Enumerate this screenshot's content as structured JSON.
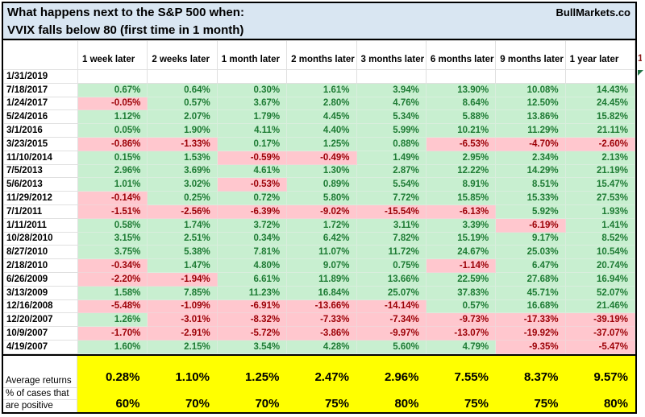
{
  "title": {
    "line1": "What happens next to the S&P 500 when:",
    "line2": "VVIX falls below 80 (first time in 1 month)",
    "brand": "BullMarkets.co"
  },
  "table": {
    "columns": [
      "1 week later",
      "2 weeks later",
      "1 month later",
      "2 months later",
      "3 months later",
      "6 months later",
      "9 months later",
      "1 year later"
    ],
    "rows": [
      {
        "date": "1/31/2019",
        "values": [
          "",
          "",
          "",
          "",
          "",
          "",
          "",
          ""
        ]
      },
      {
        "date": "7/18/2017",
        "values": [
          "0.67%",
          "0.64%",
          "0.30%",
          "1.61%",
          "3.94%",
          "13.90%",
          "10.08%",
          "14.43%"
        ]
      },
      {
        "date": "1/24/2017",
        "values": [
          "-0.05%",
          "0.57%",
          "3.67%",
          "2.80%",
          "4.76%",
          "8.64%",
          "12.50%",
          "24.45%"
        ]
      },
      {
        "date": "5/24/2016",
        "values": [
          "1.12%",
          "2.07%",
          "1.79%",
          "4.45%",
          "5.34%",
          "5.88%",
          "13.86%",
          "15.82%"
        ]
      },
      {
        "date": "3/1/2016",
        "values": [
          "0.05%",
          "1.90%",
          "4.11%",
          "4.40%",
          "5.99%",
          "10.21%",
          "11.29%",
          "21.11%"
        ]
      },
      {
        "date": "3/23/2015",
        "values": [
          "-0.86%",
          "-1.33%",
          "0.17%",
          "1.25%",
          "0.88%",
          "-6.53%",
          "-4.70%",
          "-2.60%"
        ]
      },
      {
        "date": "11/10/2014",
        "values": [
          "0.15%",
          "1.53%",
          "-0.59%",
          "-0.49%",
          "1.49%",
          "2.95%",
          "2.34%",
          "2.13%"
        ]
      },
      {
        "date": "7/5/2013",
        "values": [
          "2.96%",
          "3.69%",
          "4.61%",
          "1.30%",
          "2.87%",
          "12.22%",
          "14.29%",
          "21.19%"
        ]
      },
      {
        "date": "5/6/2013",
        "values": [
          "1.01%",
          "3.02%",
          "-0.53%",
          "0.89%",
          "5.54%",
          "8.91%",
          "8.51%",
          "15.47%"
        ]
      },
      {
        "date": "11/29/2012",
        "values": [
          "-0.14%",
          "0.25%",
          "0.72%",
          "5.80%",
          "7.72%",
          "15.85%",
          "15.33%",
          "27.53%"
        ]
      },
      {
        "date": "7/1/2011",
        "values": [
          "-1.51%",
          "-2.56%",
          "-6.39%",
          "-9.02%",
          "-15.54%",
          "-6.13%",
          "5.92%",
          "1.93%"
        ]
      },
      {
        "date": "1/11/2011",
        "values": [
          "0.58%",
          "1.74%",
          "3.72%",
          "1.72%",
          "3.11%",
          "3.39%",
          "-6.19%",
          "1.41%"
        ]
      },
      {
        "date": "10/28/2010",
        "values": [
          "3.15%",
          "2.51%",
          "0.34%",
          "6.42%",
          "7.82%",
          "15.19%",
          "9.17%",
          "8.52%"
        ]
      },
      {
        "date": "8/27/2010",
        "values": [
          "3.75%",
          "5.38%",
          "7.81%",
          "11.07%",
          "11.72%",
          "24.67%",
          "25.03%",
          "10.54%"
        ]
      },
      {
        "date": "2/18/2010",
        "values": [
          "-0.34%",
          "1.47%",
          "4.80%",
          "9.07%",
          "0.75%",
          "-1.14%",
          "6.47%",
          "20.74%"
        ]
      },
      {
        "date": "6/26/2009",
        "values": [
          "-2.20%",
          "-1.94%",
          "6.61%",
          "11.89%",
          "13.66%",
          "22.59%",
          "27.68%",
          "16.94%"
        ]
      },
      {
        "date": "3/13/2009",
        "values": [
          "1.58%",
          "7.85%",
          "11.23%",
          "16.84%",
          "25.07%",
          "37.83%",
          "45.71%",
          "52.07%"
        ]
      },
      {
        "date": "12/16/2008",
        "values": [
          "-5.48%",
          "-1.09%",
          "-6.91%",
          "-13.66%",
          "-14.14%",
          "0.57%",
          "16.68%",
          "21.46%"
        ]
      },
      {
        "date": "12/20/2007",
        "values": [
          "1.26%",
          "-3.01%",
          "-8.32%",
          "-7.33%",
          "-7.34%",
          "-9.73%",
          "-17.33%",
          "-39.19%"
        ]
      },
      {
        "date": "10/9/2007",
        "values": [
          "-1.70%",
          "-2.91%",
          "-5.72%",
          "-3.86%",
          "-9.97%",
          "-13.07%",
          "-19.92%",
          "-37.07%"
        ]
      },
      {
        "date": "4/19/2007",
        "values": [
          "1.60%",
          "2.15%",
          "3.54%",
          "4.28%",
          "5.60%",
          "4.79%",
          "-9.35%",
          "-5.47%"
        ]
      }
    ],
    "summary": {
      "avg_label": "Average returns",
      "pct_label_line1": "% of cases that",
      "pct_label_line2": "are positive",
      "averages": [
        "0.28%",
        "1.10%",
        "1.25%",
        "2.47%",
        "2.96%",
        "7.55%",
        "8.37%",
        "9.57%"
      ],
      "pct_positive": [
        "60%",
        "70%",
        "70%",
        "75%",
        "80%",
        "75%",
        "75%",
        "80%"
      ]
    }
  },
  "sliver": {
    "header_fragment": "1"
  },
  "colors": {
    "positive_bg": "#c8efd0",
    "positive_text": "#1e7b34",
    "negative_bg": "#ffc7ce",
    "negative_text": "#9c0006",
    "summary_bg": "#ffff00",
    "title_bg": "#d9e6f2"
  }
}
